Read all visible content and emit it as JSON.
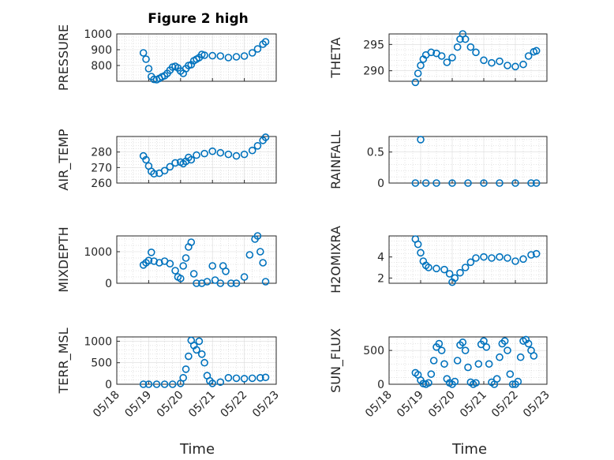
{
  "title": "Figure 2 high",
  "xlabel": "Time",
  "colors": {
    "series": "#0072BD"
  },
  "chart_data": [
    {
      "type": "scatter",
      "ylabel": "PRESSURE",
      "ylim": [
        700,
        1000
      ],
      "yticks": [
        800,
        900,
        1000
      ],
      "grid": true,
      "x_ticks": [],
      "points": [
        [
          "05/18 20:00",
          880
        ],
        [
          "05/18 22:00",
          840
        ],
        [
          "05/19 00:00",
          780
        ],
        [
          "05/19 02:00",
          730
        ],
        [
          "05/19 04:00",
          712
        ],
        [
          "05/19 06:00",
          710
        ],
        [
          "05/19 08:00",
          718
        ],
        [
          "05/19 10:00",
          728
        ],
        [
          "05/19 12:00",
          735
        ],
        [
          "05/19 14:00",
          750
        ],
        [
          "05/19 16:00",
          770
        ],
        [
          "05/19 18:00",
          790
        ],
        [
          "05/19 20:00",
          795
        ],
        [
          "05/19 22:00",
          785
        ],
        [
          "05/20 00:00",
          765
        ],
        [
          "05/20 02:00",
          750
        ],
        [
          "05/20 04:00",
          780
        ],
        [
          "05/20 06:00",
          800
        ],
        [
          "05/20 08:00",
          805
        ],
        [
          "05/20 10:00",
          830
        ],
        [
          "05/20 12:00",
          840
        ],
        [
          "05/20 14:00",
          850
        ],
        [
          "05/20 16:00",
          870
        ],
        [
          "05/20 18:00",
          865
        ],
        [
          "05/21 00:00",
          862
        ],
        [
          "05/21 06:00",
          860
        ],
        [
          "05/21 12:00",
          850
        ],
        [
          "05/21 18:00",
          855
        ],
        [
          "05/22 00:00",
          860
        ],
        [
          "05/22 06:00",
          880
        ],
        [
          "05/22 10:00",
          905
        ],
        [
          "05/22 14:00",
          935
        ],
        [
          "05/22 16:00",
          950
        ]
      ]
    },
    {
      "type": "scatter",
      "ylabel": "THETA",
      "ylim": [
        288,
        297
      ],
      "yticks": [
        290,
        295
      ],
      "grid": true,
      "x_ticks": [],
      "points": [
        [
          "05/18 20:00",
          287.8
        ],
        [
          "05/18 22:00",
          289.5
        ],
        [
          "05/19 00:00",
          291
        ],
        [
          "05/19 02:00",
          292.2
        ],
        [
          "05/19 04:00",
          293
        ],
        [
          "05/19 08:00",
          293.5
        ],
        [
          "05/19 12:00",
          293.3
        ],
        [
          "05/19 16:00",
          292.8
        ],
        [
          "05/19 20:00",
          291.6
        ],
        [
          "05/20 00:00",
          292.5
        ],
        [
          "05/20 04:00",
          294.5
        ],
        [
          "05/20 06:00",
          296
        ],
        [
          "05/20 08:00",
          297
        ],
        [
          "05/20 10:00",
          296
        ],
        [
          "05/20 14:00",
          294.5
        ],
        [
          "05/20 18:00",
          293.5
        ],
        [
          "05/21 00:00",
          292
        ],
        [
          "05/21 06:00",
          291.5
        ],
        [
          "05/21 12:00",
          291.8
        ],
        [
          "05/21 18:00",
          291
        ],
        [
          "05/22 00:00",
          290.8
        ],
        [
          "05/22 06:00",
          291.2
        ],
        [
          "05/22 10:00",
          292.8
        ],
        [
          "05/22 14:00",
          293.6
        ],
        [
          "05/22 16:00",
          293.8
        ]
      ]
    },
    {
      "type": "scatter",
      "ylabel": "AIR_TEMP",
      "ylim": [
        260,
        290
      ],
      "yticks": [
        260,
        270,
        280
      ],
      "grid": true,
      "x_ticks": [],
      "points": [
        [
          "05/18 20:00",
          277.5
        ],
        [
          "05/18 22:00",
          275
        ],
        [
          "05/19 00:00",
          271
        ],
        [
          "05/19 02:00",
          267.5
        ],
        [
          "05/19 04:00",
          266
        ],
        [
          "05/19 08:00",
          266.3
        ],
        [
          "05/19 12:00",
          268
        ],
        [
          "05/19 16:00",
          270.5
        ],
        [
          "05/19 20:00",
          273
        ],
        [
          "05/20 00:00",
          273.5
        ],
        [
          "05/20 02:00",
          272.5
        ],
        [
          "05/20 04:00",
          274
        ],
        [
          "05/20 06:00",
          276.5
        ],
        [
          "05/20 08:00",
          275
        ],
        [
          "05/20 12:00",
          278
        ],
        [
          "05/20 18:00",
          279
        ],
        [
          "05/21 00:00",
          280.5
        ],
        [
          "05/21 06:00",
          279.5
        ],
        [
          "05/21 12:00",
          278.5
        ],
        [
          "05/21 18:00",
          277.5
        ],
        [
          "05/22 00:00",
          278.5
        ],
        [
          "05/22 06:00",
          281
        ],
        [
          "05/22 10:00",
          284
        ],
        [
          "05/22 14:00",
          287.5
        ],
        [
          "05/22 16:00",
          289.5
        ]
      ]
    },
    {
      "type": "scatter",
      "ylabel": "RAINFALL",
      "ylim": [
        0,
        0.75
      ],
      "yticks": [
        0,
        0.5
      ],
      "grid": true,
      "x_ticks": [],
      "points": [
        [
          "05/18 20:00",
          0
        ],
        [
          "05/19 00:00",
          0.7
        ],
        [
          "05/19 04:00",
          0
        ],
        [
          "05/19 12:00",
          0
        ],
        [
          "05/20 00:00",
          0
        ],
        [
          "05/20 12:00",
          0
        ],
        [
          "05/21 00:00",
          0
        ],
        [
          "05/21 12:00",
          0
        ],
        [
          "05/22 00:00",
          0
        ],
        [
          "05/22 12:00",
          0
        ],
        [
          "05/22 16:00",
          0
        ]
      ]
    },
    {
      "type": "scatter",
      "ylabel": "MIXDEPTH",
      "ylim": [
        0,
        1500
      ],
      "yticks": [
        0,
        1000
      ],
      "grid": true,
      "x_ticks": [],
      "points": [
        [
          "05/18 20:00",
          580
        ],
        [
          "05/18 22:00",
          650
        ],
        [
          "05/19 00:00",
          720
        ],
        [
          "05/19 02:00",
          980
        ],
        [
          "05/19 04:00",
          700
        ],
        [
          "05/19 08:00",
          650
        ],
        [
          "05/19 12:00",
          700
        ],
        [
          "05/19 16:00",
          620
        ],
        [
          "05/19 20:00",
          400
        ],
        [
          "05/19 22:00",
          200
        ],
        [
          "05/20 00:00",
          150
        ],
        [
          "05/20 02:00",
          550
        ],
        [
          "05/20 04:00",
          800
        ],
        [
          "05/20 06:00",
          1150
        ],
        [
          "05/20 08:00",
          1300
        ],
        [
          "05/20 10:00",
          300
        ],
        [
          "05/20 12:00",
          0
        ],
        [
          "05/20 16:00",
          0
        ],
        [
          "05/20 20:00",
          50
        ],
        [
          "05/21 00:00",
          550
        ],
        [
          "05/21 02:00",
          100
        ],
        [
          "05/21 06:00",
          0
        ],
        [
          "05/21 08:00",
          550
        ],
        [
          "05/21 10:00",
          380
        ],
        [
          "05/21 14:00",
          0
        ],
        [
          "05/21 18:00",
          0
        ],
        [
          "05/22 00:00",
          200
        ],
        [
          "05/22 04:00",
          900
        ],
        [
          "05/22 08:00",
          1400
        ],
        [
          "05/22 10:00",
          1500
        ],
        [
          "05/22 12:00",
          1000
        ],
        [
          "05/22 14:00",
          650
        ],
        [
          "05/22 16:00",
          50
        ]
      ]
    },
    {
      "type": "scatter",
      "ylabel": "H2OMIXRA",
      "ylim": [
        1.5,
        6
      ],
      "yticks": [
        2,
        4
      ],
      "grid": true,
      "x_ticks": [],
      "points": [
        [
          "05/18 20:00",
          5.7
        ],
        [
          "05/18 22:00",
          5.2
        ],
        [
          "05/19 00:00",
          4.4
        ],
        [
          "05/19 02:00",
          3.6
        ],
        [
          "05/19 04:00",
          3.2
        ],
        [
          "05/19 06:00",
          3
        ],
        [
          "05/19 12:00",
          2.9
        ],
        [
          "05/19 18:00",
          2.8
        ],
        [
          "05/19 22:00",
          2.4
        ],
        [
          "05/20 00:00",
          1.6
        ],
        [
          "05/20 02:00",
          2
        ],
        [
          "05/20 06:00",
          2.5
        ],
        [
          "05/20 10:00",
          3
        ],
        [
          "05/20 14:00",
          3.5
        ],
        [
          "05/20 18:00",
          3.9
        ],
        [
          "05/21 00:00",
          4
        ],
        [
          "05/21 06:00",
          3.9
        ],
        [
          "05/21 12:00",
          4
        ],
        [
          "05/21 18:00",
          3.9
        ],
        [
          "05/22 00:00",
          3.6
        ],
        [
          "05/22 06:00",
          3.8
        ],
        [
          "05/22 12:00",
          4.2
        ],
        [
          "05/22 16:00",
          4.3
        ]
      ]
    },
    {
      "type": "scatter",
      "ylabel": "TERR_MSL",
      "ylim": [
        0,
        1100
      ],
      "yticks": [
        0,
        500,
        1000
      ],
      "grid": true,
      "x_ticks": [
        "05/18",
        "05/19",
        "05/20",
        "05/21",
        "05/22",
        "05/23"
      ],
      "points": [
        [
          "05/18 20:00",
          0
        ],
        [
          "05/19 00:00",
          0
        ],
        [
          "05/19 06:00",
          0
        ],
        [
          "05/19 12:00",
          0
        ],
        [
          "05/19 18:00",
          0
        ],
        [
          "05/20 00:00",
          20
        ],
        [
          "05/20 02:00",
          150
        ],
        [
          "05/20 04:00",
          350
        ],
        [
          "05/20 06:00",
          650
        ],
        [
          "05/20 08:00",
          1020
        ],
        [
          "05/20 10:00",
          900
        ],
        [
          "05/20 12:00",
          800
        ],
        [
          "05/20 14:00",
          1000
        ],
        [
          "05/20 16:00",
          700
        ],
        [
          "05/20 18:00",
          500
        ],
        [
          "05/20 20:00",
          200
        ],
        [
          "05/20 22:00",
          80
        ],
        [
          "05/21 00:00",
          20
        ],
        [
          "05/21 06:00",
          50
        ],
        [
          "05/21 12:00",
          150
        ],
        [
          "05/21 18:00",
          140
        ],
        [
          "05/22 00:00",
          130
        ],
        [
          "05/22 06:00",
          140
        ],
        [
          "05/22 12:00",
          150
        ],
        [
          "05/22 16:00",
          160
        ]
      ]
    },
    {
      "type": "scatter",
      "ylabel": "SUN_FLUX",
      "ylim": [
        0,
        700
      ],
      "yticks": [
        0,
        500
      ],
      "grid": true,
      "x_ticks": [
        "05/18",
        "05/19",
        "05/20",
        "05/21",
        "05/22",
        "05/23"
      ],
      "points": [
        [
          "05/18 20:00",
          170
        ],
        [
          "05/18 22:00",
          140
        ],
        [
          "05/19 00:00",
          60
        ],
        [
          "05/19 02:00",
          10
        ],
        [
          "05/19 04:00",
          0
        ],
        [
          "05/19 06:00",
          20
        ],
        [
          "05/19 08:00",
          150
        ],
        [
          "05/19 10:00",
          350
        ],
        [
          "05/19 12:00",
          550
        ],
        [
          "05/19 14:00",
          600
        ],
        [
          "05/19 16:00",
          500
        ],
        [
          "05/19 18:00",
          300
        ],
        [
          "05/19 20:00",
          80
        ],
        [
          "05/19 22:00",
          20
        ],
        [
          "05/20 00:00",
          0
        ],
        [
          "05/20 02:00",
          40
        ],
        [
          "05/20 04:00",
          350
        ],
        [
          "05/20 06:00",
          580
        ],
        [
          "05/20 08:00",
          620
        ],
        [
          "05/20 10:00",
          500
        ],
        [
          "05/20 12:00",
          250
        ],
        [
          "05/20 14:00",
          30
        ],
        [
          "05/20 16:00",
          0
        ],
        [
          "05/20 18:00",
          20
        ],
        [
          "05/20 20:00",
          300
        ],
        [
          "05/20 22:00",
          590
        ],
        [
          "05/21 00:00",
          640
        ],
        [
          "05/21 02:00",
          550
        ],
        [
          "05/21 04:00",
          300
        ],
        [
          "05/21 06:00",
          30
        ],
        [
          "05/21 08:00",
          0
        ],
        [
          "05/21 10:00",
          80
        ],
        [
          "05/21 12:00",
          400
        ],
        [
          "05/21 14:00",
          600
        ],
        [
          "05/21 16:00",
          640
        ],
        [
          "05/21 18:00",
          500
        ],
        [
          "05/21 20:00",
          150
        ],
        [
          "05/21 22:00",
          0
        ],
        [
          "05/22 00:00",
          0
        ],
        [
          "05/22 02:00",
          40
        ],
        [
          "05/22 04:00",
          400
        ],
        [
          "05/22 06:00",
          640
        ],
        [
          "05/22 08:00",
          660
        ],
        [
          "05/22 10:00",
          600
        ],
        [
          "05/22 12:00",
          500
        ],
        [
          "05/22 14:00",
          420
        ]
      ]
    }
  ]
}
